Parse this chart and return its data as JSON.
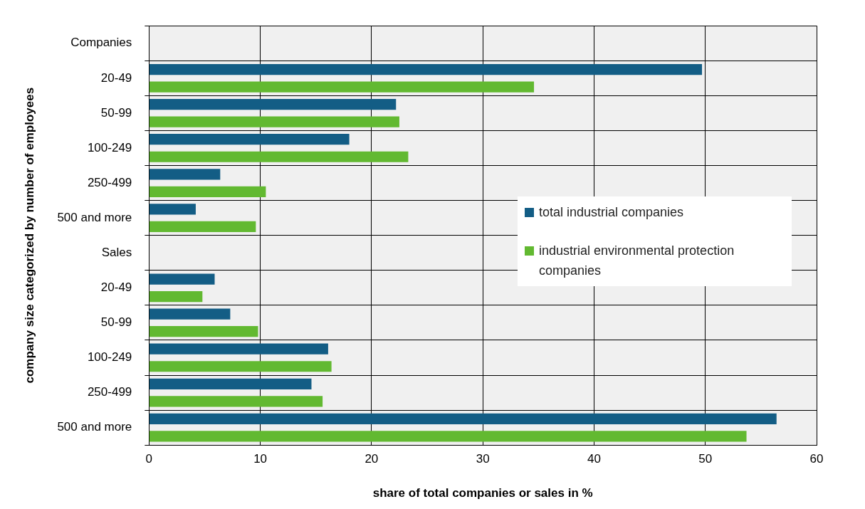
{
  "chart_data": {
    "type": "bar",
    "orientation": "horizontal",
    "xlabel": "share of total companies or sales in %",
    "ylabel": "company size categorized by number of employees",
    "categories": [
      "Companies",
      "20-49",
      "50-99",
      "100-249",
      "250-499",
      "500 and more",
      "Sales",
      "20-49",
      "50-99",
      "100-249",
      "250-499",
      "500 and more"
    ],
    "series": [
      {
        "name": "total industrial companies",
        "color": "#135d85",
        "values": [
          null,
          49.7,
          22.2,
          18.0,
          6.4,
          4.2,
          null,
          5.9,
          7.3,
          16.1,
          14.6,
          56.4
        ]
      },
      {
        "name": "industrial environmental protection companies",
        "color": "#62b931",
        "values": [
          null,
          34.6,
          22.5,
          23.3,
          10.5,
          9.6,
          null,
          4.8,
          9.8,
          16.4,
          15.6,
          53.7
        ]
      }
    ],
    "xlim": [
      0,
      60
    ],
    "xticks": [
      0,
      10,
      20,
      30,
      40,
      50,
      60
    ],
    "grid": true,
    "legend": "right"
  }
}
